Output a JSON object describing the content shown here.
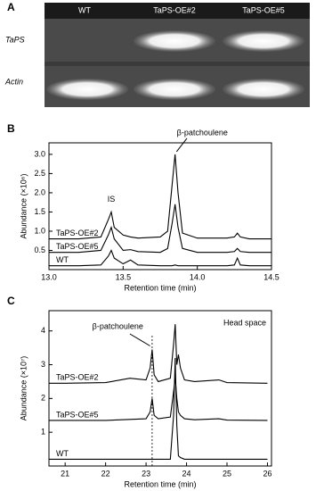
{
  "gel": {
    "panel": "A",
    "lanes": [
      "WT",
      "TaPS-OE#2",
      "TaPS-OE#5"
    ],
    "rows": [
      "TaPS",
      "Actin"
    ]
  },
  "chart_data": [
    {
      "type": "line",
      "panel": "B",
      "xlabel": "Retention time (min)",
      "ylabel": "Abundance (×10⁶)",
      "annotations": [
        "IS",
        "β-patchoulene"
      ],
      "x": [
        13.0,
        13.2,
        13.35,
        13.4,
        13.42,
        13.44,
        13.5,
        13.55,
        13.6,
        13.75,
        13.8,
        13.83,
        13.85,
        13.87,
        13.9,
        14.0,
        14.2,
        14.25,
        14.27,
        14.29,
        14.35,
        14.5
      ],
      "series": [
        {
          "name": "TaPS-OE#2",
          "color": "#000000",
          "values": [
            0.8,
            0.8,
            0.85,
            1.3,
            1.5,
            1.1,
            0.9,
            0.85,
            0.82,
            0.85,
            1.0,
            2.2,
            3.0,
            2.0,
            0.95,
            0.82,
            0.82,
            0.85,
            0.95,
            0.85,
            0.8,
            0.8
          ]
        },
        {
          "name": "TaPS-OE#5",
          "color": "#000000",
          "values": [
            0.45,
            0.45,
            0.5,
            0.9,
            1.1,
            0.8,
            0.5,
            0.52,
            0.47,
            0.45,
            0.55,
            1.2,
            1.7,
            1.1,
            0.55,
            0.45,
            0.45,
            0.47,
            0.55,
            0.47,
            0.45,
            0.45
          ]
        },
        {
          "name": "WT",
          "color": "#000000",
          "values": [
            0.1,
            0.1,
            0.12,
            0.35,
            0.5,
            0.3,
            0.15,
            0.25,
            0.12,
            0.1,
            0.1,
            0.1,
            0.12,
            0.1,
            0.1,
            0.1,
            0.1,
            0.12,
            0.3,
            0.12,
            0.1,
            0.1
          ]
        }
      ],
      "xlim": [
        13.0,
        14.5
      ],
      "xticks": [
        {
          "value": 13,
          "label": "13.0"
        },
        13.5,
        {
          "value": 14,
          "label": "14.0"
        },
        14.5
      ],
      "ylim": [
        0,
        3.3
      ],
      "yticks": [
        0.5,
        {
          "value": 1,
          "label": "1.0"
        },
        1.5,
        {
          "value": 2,
          "label": "2.0"
        },
        2.5,
        {
          "value": 3,
          "label": "3.0"
        }
      ]
    },
    {
      "type": "line",
      "panel": "C",
      "xlabel": "Retention time (min)",
      "ylabel": "Abundance (×10⁷)",
      "annotations": [
        "β-patchoulene",
        "Head space"
      ],
      "reference_line_x": 23.15,
      "x": [
        20.6,
        21,
        22,
        22.6,
        23.0,
        23.1,
        23.15,
        23.2,
        23.3,
        23.6,
        23.68,
        23.72,
        23.76,
        23.8,
        23.85,
        23.95,
        24.2,
        24.8,
        25,
        26
      ],
      "series": [
        {
          "name": "TaPS-OE#2",
          "color": "#000000",
          "values": [
            2.45,
            2.45,
            2.47,
            2.6,
            2.55,
            2.9,
            3.45,
            2.7,
            2.5,
            2.6,
            3.6,
            4.2,
            3.0,
            3.3,
            2.9,
            2.55,
            2.5,
            2.55,
            2.47,
            2.45
          ]
        },
        {
          "name": "TaPS-OE#5",
          "color": "#000000",
          "values": [
            1.35,
            1.35,
            1.35,
            1.38,
            1.4,
            1.6,
            2.0,
            1.5,
            1.4,
            1.45,
            2.2,
            2.6,
            2.0,
            1.6,
            1.5,
            1.4,
            1.37,
            1.4,
            1.36,
            1.35
          ]
        },
        {
          "name": "WT",
          "color": "#000000",
          "values": [
            0.2,
            0.2,
            0.2,
            0.2,
            0.2,
            0.2,
            0.2,
            0.2,
            0.2,
            0.2,
            1.5,
            3.2,
            1.2,
            0.3,
            0.25,
            0.2,
            0.2,
            0.2,
            0.2,
            0.2
          ]
        }
      ],
      "xlim": [
        20.6,
        26.1
      ],
      "xticks": [
        21,
        22,
        23,
        24,
        25,
        26
      ],
      "ylim": [
        0,
        4.6
      ],
      "yticks": [
        1,
        2,
        3,
        4
      ]
    }
  ]
}
